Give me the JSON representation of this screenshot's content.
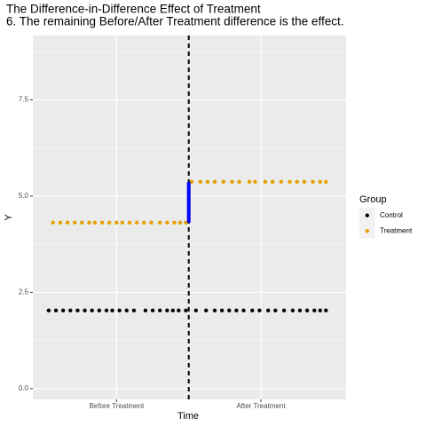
{
  "chart_data": {
    "type": "scatter",
    "title": "The Difference-in-Difference Effect of Treatment",
    "subtitle": "6. The remaining Before/After Treatment difference is the effect.",
    "x_label": "Time",
    "y_label": "Y",
    "xlim": [
      0.42,
      2.59
    ],
    "xticks": [
      {
        "value": 1,
        "label": "Before Treatment"
      },
      {
        "value": 2,
        "label": "After Treatment"
      }
    ],
    "ylim": [
      -0.28,
      9.17
    ],
    "yticks": [
      {
        "value": 0,
        "label": "0.0"
      },
      2.5,
      {
        "value": 5,
        "label": "5.0"
      },
      7.5
    ],
    "y_minor_ticks": [
      1.25,
      3.75,
      6.25,
      8.75
    ],
    "grid": true,
    "legend_title": "Group",
    "legend": "right",
    "series": [
      {
        "name": "Control",
        "color": "#000000",
        "x": [
          0.53,
          0.58,
          0.63,
          0.68,
          0.73,
          0.78,
          0.83,
          0.88,
          0.93,
          0.97,
          1.02,
          1.07,
          1.12,
          1.2,
          1.25,
          1.3,
          1.35,
          1.39,
          1.43,
          1.48,
          1.55,
          1.62,
          1.68,
          1.73,
          1.78,
          1.83,
          1.88,
          1.94,
          1.99,
          2.05,
          2.1,
          2.16,
          2.22,
          2.27,
          2.32,
          2.37,
          2.41,
          2.45
        ],
        "values": [
          2.03,
          2.03,
          2.03,
          2.03,
          2.03,
          2.03,
          2.03,
          2.03,
          2.03,
          2.03,
          2.03,
          2.03,
          2.03,
          2.03,
          2.03,
          2.03,
          2.03,
          2.03,
          2.03,
          2.03,
          2.03,
          2.03,
          2.03,
          2.03,
          2.03,
          2.03,
          2.03,
          2.03,
          2.03,
          2.03,
          2.03,
          2.03,
          2.03,
          2.03,
          2.03,
          2.03,
          2.03,
          2.03
        ]
      },
      {
        "name": "Treatment",
        "color": "#E69F00",
        "x": [
          0.56,
          0.61,
          0.66,
          0.71,
          0.76,
          0.81,
          0.85,
          0.9,
          0.95,
          1.0,
          1.04,
          1.09,
          1.14,
          1.19,
          1.24,
          1.3,
          1.35,
          1.4,
          1.44,
          1.48,
          1.52,
          1.58,
          1.63,
          1.68,
          1.74,
          1.8,
          1.85,
          1.92,
          1.96,
          2.03,
          2.08,
          2.14,
          2.2,
          2.25,
          2.3,
          2.36,
          2.41,
          2.45
        ],
        "values": [
          4.31,
          4.31,
          4.31,
          4.31,
          4.31,
          4.31,
          4.31,
          4.31,
          4.31,
          4.31,
          4.31,
          4.31,
          4.31,
          4.31,
          4.31,
          4.31,
          4.31,
          4.31,
          4.31,
          4.31,
          5.37,
          5.37,
          5.37,
          5.37,
          5.37,
          5.37,
          5.37,
          5.37,
          5.37,
          5.37,
          5.37,
          5.37,
          5.37,
          5.37,
          5.37,
          5.37,
          5.37,
          5.37
        ]
      }
    ],
    "vline": {
      "x": 1.5,
      "color": "#000000"
    },
    "segment": {
      "x": 1.5,
      "y": [
        4.31,
        5.37
      ],
      "color": "#0000FF"
    }
  }
}
